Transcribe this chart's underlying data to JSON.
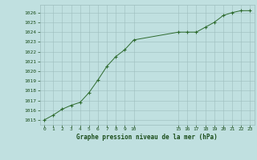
{
  "x_values": [
    0,
    1,
    2,
    3,
    4,
    5,
    6,
    7,
    8,
    9,
    10,
    15,
    16,
    17,
    18,
    19,
    20,
    21,
    22,
    23
  ],
  "y_values": [
    1015.0,
    1015.5,
    1016.1,
    1016.5,
    1016.8,
    1017.8,
    1019.1,
    1020.5,
    1021.5,
    1022.2,
    1023.2,
    1024.0,
    1024.0,
    1024.0,
    1024.5,
    1025.0,
    1025.7,
    1026.0,
    1026.2,
    1026.2
  ],
  "line_color": "#2d6a2d",
  "marker_color": "#2d6a2d",
  "bg_color": "#c0e0e0",
  "grid_color": "#9dbdbd",
  "ylabel_ticks": [
    1015,
    1016,
    1017,
    1018,
    1019,
    1020,
    1021,
    1022,
    1023,
    1024,
    1025,
    1026
  ],
  "x_ticks_main": [
    0,
    1,
    2,
    3,
    4,
    5,
    6,
    7,
    8,
    9,
    10
  ],
  "x_ticks_extra": [
    15,
    16,
    17,
    18,
    19,
    20,
    21,
    22,
    23
  ],
  "ylim": [
    1014.5,
    1026.8
  ],
  "xlim": [
    -0.5,
    23.5
  ],
  "xlabel": "Graphe pression niveau de la mer (hPa)",
  "font_color": "#1a4d1a"
}
